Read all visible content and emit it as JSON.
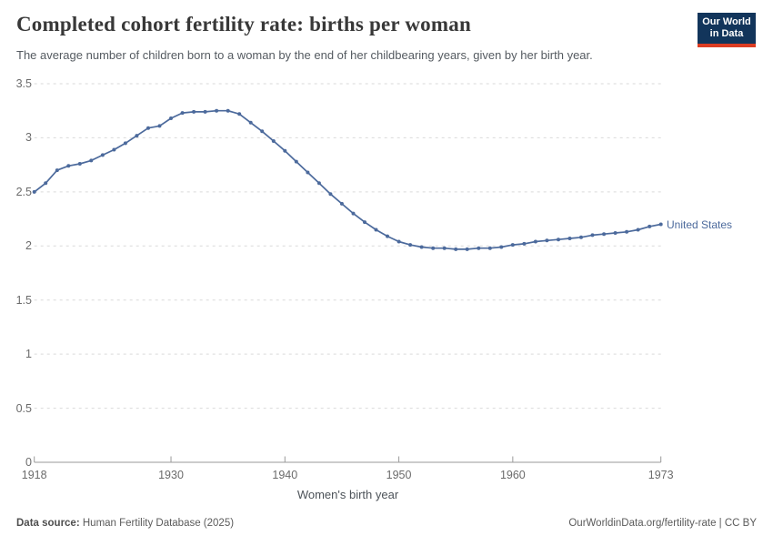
{
  "header": {
    "title": "Completed cohort fertility rate: births per woman",
    "subtitle": "The average number of children born to a woman by the end of her childbearing years, given by her birth year.",
    "logo_line1": "Our World",
    "logo_line2": "in Data"
  },
  "footer": {
    "source_label": "Data source:",
    "source_value": " Human Fertility Database (2025)",
    "credit": "OurWorldinData.org/fertility-rate | CC BY"
  },
  "colors": {
    "line": "#4C6A9C",
    "grid": "#dadada",
    "axis": "#9a9a9a",
    "tick_text": "#6b6b6b",
    "logo_bg": "#12355b",
    "logo_bar": "#dc3c22"
  },
  "chart_data": {
    "type": "line",
    "title": "Completed cohort fertility rate: births per woman",
    "subtitle": "The average number of children born to a woman by the end of her childbearing years, given by her birth year.",
    "xlabel": "Women's birth year",
    "ylabel": "",
    "xlim": [
      1918,
      1973
    ],
    "ylim": [
      0,
      3.5
    ],
    "grid": "horizontal-dashed",
    "legend_position": "end-of-line-label",
    "xticks": [
      1918,
      1930,
      1940,
      1950,
      1960,
      1973
    ],
    "yticks": [
      0,
      0.5,
      1,
      1.5,
      2,
      2.5,
      3,
      3.5
    ],
    "x": [
      1918,
      1919,
      1920,
      1921,
      1922,
      1923,
      1924,
      1925,
      1926,
      1927,
      1928,
      1929,
      1930,
      1931,
      1932,
      1933,
      1934,
      1935,
      1936,
      1937,
      1938,
      1939,
      1940,
      1941,
      1942,
      1943,
      1944,
      1945,
      1946,
      1947,
      1948,
      1949,
      1950,
      1951,
      1952,
      1953,
      1954,
      1955,
      1956,
      1957,
      1958,
      1959,
      1960,
      1961,
      1962,
      1963,
      1964,
      1965,
      1966,
      1967,
      1968,
      1969,
      1970,
      1971,
      1972,
      1973
    ],
    "series": [
      {
        "name": "United States",
        "color": "#4C6A9C",
        "values": [
          2.5,
          2.58,
          2.7,
          2.74,
          2.76,
          2.79,
          2.84,
          2.89,
          2.95,
          3.02,
          3.09,
          3.11,
          3.18,
          3.23,
          3.24,
          3.24,
          3.25,
          3.25,
          3.22,
          3.14,
          3.06,
          2.97,
          2.88,
          2.78,
          2.68,
          2.58,
          2.48,
          2.39,
          2.3,
          2.22,
          2.15,
          2.09,
          2.04,
          2.01,
          1.99,
          1.98,
          1.98,
          1.97,
          1.97,
          1.98,
          1.98,
          1.99,
          2.01,
          2.02,
          2.04,
          2.05,
          2.06,
          2.07,
          2.08,
          2.1,
          2.11,
          2.12,
          2.13,
          2.15,
          2.18,
          2.2
        ]
      }
    ]
  }
}
